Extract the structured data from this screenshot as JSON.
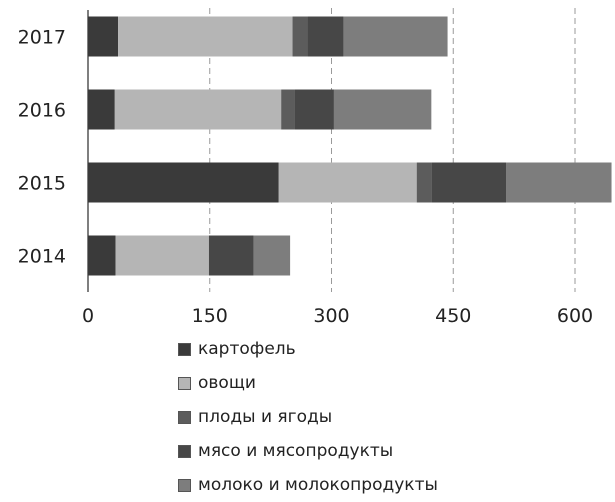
{
  "chart_data": {
    "type": "bar",
    "orientation": "horizontal",
    "stacked": true,
    "categories": [
      "2017",
      "2016",
      "2015",
      "2014"
    ],
    "series": [
      {
        "name": "картофель",
        "color": "#3a3a3a",
        "values": [
          37,
          33,
          235,
          34
        ]
      },
      {
        "name": "овощи",
        "color": "#b5b5b5",
        "values": [
          215,
          205,
          170,
          115
        ]
      },
      {
        "name": "плоды и ягоды",
        "color": "#5c5c5c",
        "values": [
          18,
          17,
          18,
          0
        ]
      },
      {
        "name": "мясо и мясопродукты",
        "color": "#474747",
        "values": [
          45,
          48,
          92,
          55
        ]
      },
      {
        "name": "молоко и молокопродукты",
        "color": "#7d7d7d",
        "values": [
          128,
          120,
          130,
          45
        ]
      }
    ],
    "xlim": [
      0,
      650
    ],
    "xticks": [
      "0",
      "150",
      "300",
      "450",
      "600"
    ],
    "xtick_values": [
      0,
      150,
      300,
      450,
      600
    ],
    "grid": "vertical dashed",
    "legend_position": "bottom",
    "title": "",
    "xlabel": "",
    "ylabel": ""
  }
}
